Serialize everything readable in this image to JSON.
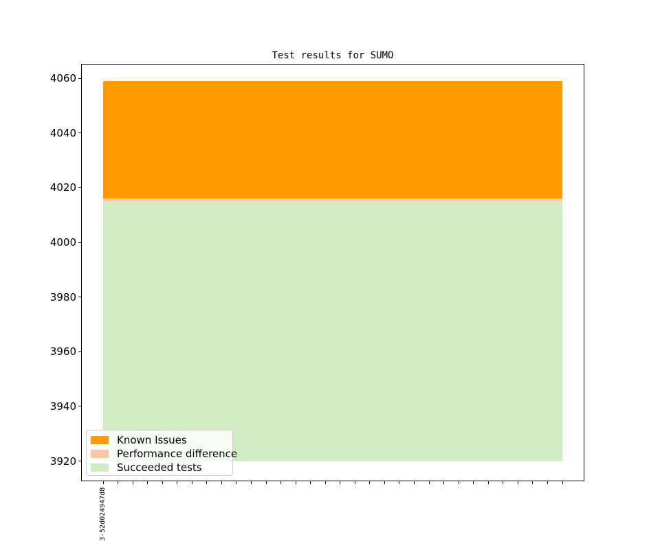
{
  "chart_data": {
    "type": "bar",
    "stacked": true,
    "title": "Test results for SUMO",
    "grid": false,
    "axis_color": "#000000",
    "legend": {
      "position": "lower-left",
      "border_color": "#cccccc",
      "background_alpha": 0.8,
      "entries": [
        {
          "label": "Known Issues",
          "color": "#ff9a01"
        },
        {
          "label": "Performance difference",
          "color": "#f8c9a4"
        },
        {
          "label": "Succeeded tests",
          "color": "#d2ebc2"
        }
      ]
    },
    "series": [
      {
        "name": "Succeeded tests",
        "color": "#d2ebc2",
        "value": 4015,
        "stack_from": 3920,
        "stack_to": 4015
      },
      {
        "name": "Performance difference",
        "color": "#f8c9a4",
        "value": 1,
        "stack_from": 4015,
        "stack_to": 4016
      },
      {
        "name": "Known Issues",
        "color": "#ff9a01",
        "value": 43,
        "stack_from": 4016,
        "stack_to": 4059
      }
    ],
    "stack_total": 4059,
    "x_axis": {
      "tick_count": 32,
      "tick_labels": [
        "3-52d024947d8"
      ],
      "label_rotation_deg": 90,
      "values_constant_across_x": true
    },
    "y_axis": {
      "lim": [
        3912.6,
        4065.3
      ],
      "ticks": [
        3920,
        3940,
        3960,
        3980,
        4000,
        4020,
        4040,
        4060
      ]
    }
  }
}
